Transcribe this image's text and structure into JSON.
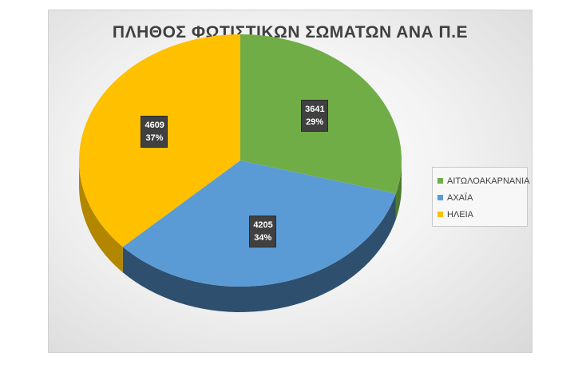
{
  "chart_data": {
    "type": "pie",
    "title": "ΠΛΗΘΟΣ ΦΩΤΙΣΤΙΚΩΝ ΣΩΜΑΤΩΝ ΑΝΑ Π.Ε",
    "categories": [
      "ΑΙΤΩΛΟΑΚΑΡΝΑΝΙΑ",
      "ΑΧΑΪΑ",
      "ΗΛΕΙΑ"
    ],
    "values": [
      3641,
      4205,
      4609
    ],
    "percent_labels": [
      "29%",
      "34%",
      "37%"
    ],
    "colors": [
      "#70ad47",
      "#5b9bd5",
      "#ffc000"
    ],
    "side_colors": [
      "#4e7a30",
      "#2f4f6e",
      "#b38600"
    ],
    "legend_position": "right",
    "style": "3d"
  }
}
